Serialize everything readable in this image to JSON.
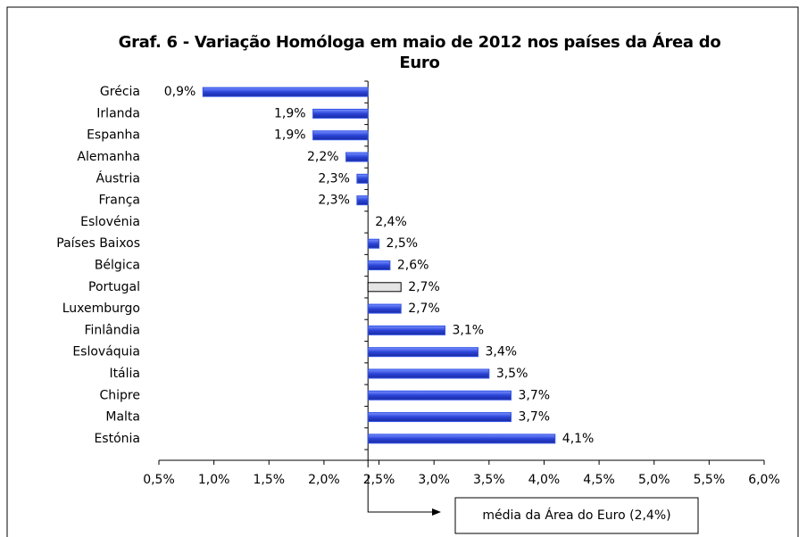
{
  "chart_data": {
    "type": "hbar",
    "title": "Graf. 6 - Variação Homóloga em maio de 2012 nos países da Área do Euro",
    "categories": [
      "Grécia",
      "Irlanda",
      "Espanha",
      "Alemanha",
      "Áustria",
      "França",
      "Eslovénia",
      "Países Baixos",
      "Bélgica",
      "Portugal",
      "Luxemburgo",
      "Finlândia",
      "Eslováquia",
      "Itália",
      "Chipre",
      "Malta",
      "Estónia"
    ],
    "values": [
      0.9,
      1.9,
      1.9,
      2.2,
      2.3,
      2.3,
      2.4,
      2.5,
      2.6,
      2.7,
      2.7,
      3.1,
      3.4,
      3.5,
      3.7,
      3.7,
      4.1
    ],
    "value_labels": [
      "0,9%",
      "1,9%",
      "1,9%",
      "2,2%",
      "2,3%",
      "2,3%",
      "2,4%",
      "2,5%",
      "2,6%",
      "2,7%",
      "2,7%",
      "3,1%",
      "3,4%",
      "3,5%",
      "3,7%",
      "3,7%",
      "4,1%"
    ],
    "color": "#3355e8",
    "highlight": "Portugal",
    "highlight_color": "#e4e4e4",
    "mean": 2.4,
    "annotation": "média da Área do Euro (2,4%)",
    "xlim": [
      0.5,
      6.0
    ],
    "xticks": [
      {
        "value": 0.5,
        "label": "0,5%"
      },
      {
        "value": 1.0,
        "label": "1,0%"
      },
      {
        "value": 1.5,
        "label": "1,5%"
      },
      {
        "value": 2.0,
        "label": "2,0%"
      },
      {
        "value": 2.5,
        "label": "2,5%"
      },
      {
        "value": 3.0,
        "label": "3,0%"
      },
      {
        "value": 3.5,
        "label": "3,5%"
      },
      {
        "value": 4.0,
        "label": "4,0%"
      },
      {
        "value": 4.5,
        "label": "4,5%"
      },
      {
        "value": 5.0,
        "label": "5,0%"
      },
      {
        "value": 5.5,
        "label": "5,5%"
      },
      {
        "value": 6.0,
        "label": "6,0%"
      }
    ]
  }
}
